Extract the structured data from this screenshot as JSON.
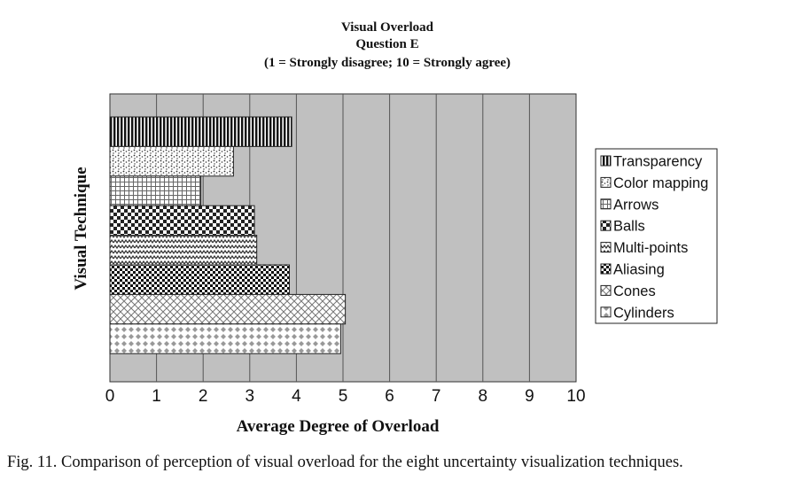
{
  "chart_data": {
    "type": "bar",
    "orientation": "horizontal",
    "title": "Visual Overload",
    "subtitle": "Question E",
    "subtitle2": "(1 = Strongly disagree; 10 = Strongly agree)",
    "xlabel": "Average Degree of Overload",
    "ylabel": "Visual Technique",
    "xlim": [
      0,
      10
    ],
    "xticks": [
      "0",
      "1",
      "2",
      "3",
      "4",
      "5",
      "6",
      "7",
      "8",
      "9",
      "10"
    ],
    "categories": [
      "Transparency",
      "Color mapping",
      "Arrows",
      "Balls",
      "Multi-points",
      "Aliasing",
      "Cones",
      "Cylinders"
    ],
    "values": [
      3.9,
      2.65,
      1.95,
      3.1,
      3.15,
      3.85,
      5.05,
      4.95
    ],
    "legend": [
      "Transparency",
      "Color mapping",
      "Arrows",
      "Balls",
      "Multi-points",
      "Aliasing",
      "Cones",
      "Cylinders"
    ],
    "legend_position": "right",
    "grid": "vertical",
    "plot_background": "#c0c0c0"
  },
  "caption": "Fig. 11. Comparison of perception of visual overload for the eight uncertainty visualization techniques."
}
